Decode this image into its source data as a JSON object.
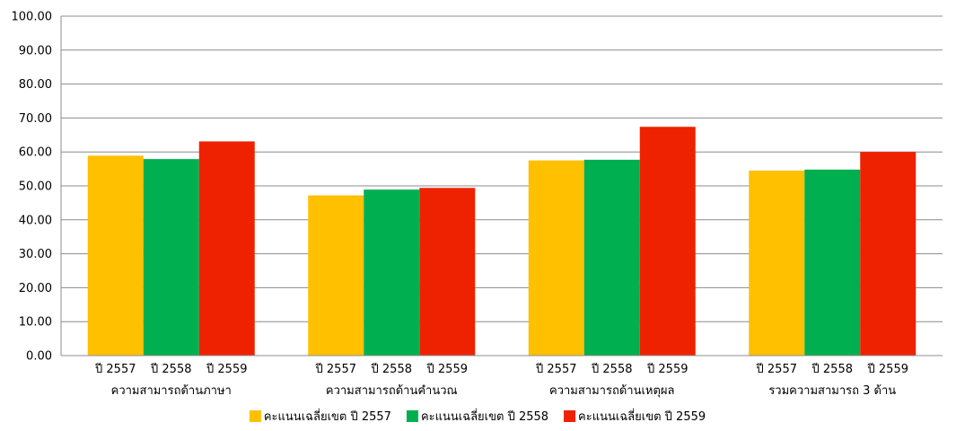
{
  "chart_data": {
    "type": "bar",
    "title": "",
    "xlabel": "",
    "ylabel": "",
    "ylim": [
      0,
      100
    ],
    "yticks": [
      "0.00",
      "10.00",
      "20.00",
      "30.00",
      "40.00",
      "50.00",
      "60.00",
      "70.00",
      "80.00",
      "90.00",
      "100.00"
    ],
    "grid": true,
    "legend_position": "bottom",
    "categories": [
      "ความสามารถด้านภาษา",
      "ความสามารถด้านคำนวณ",
      "ความสามารถด้านเหตุผล",
      "รวมความสามารถ 3 ด้าน"
    ],
    "bar_labels": [
      "ปี 2557",
      "ปี 2558",
      "ปี 2559"
    ],
    "series": [
      {
        "name": "คะแนนเฉลี่ยเขต ปี 2557",
        "color": "#FFC000",
        "values": [
          58.9,
          47.2,
          57.5,
          54.5
        ]
      },
      {
        "name": "คะแนนเฉลี่ยเขต ปี 2558",
        "color": "#00B050",
        "values": [
          57.9,
          48.9,
          57.7,
          54.8
        ]
      },
      {
        "name": "คะแนนเฉลี่ยเขต ปี 2559",
        "color": "#EE2200",
        "values": [
          63.1,
          49.4,
          67.4,
          60.0
        ]
      }
    ]
  }
}
